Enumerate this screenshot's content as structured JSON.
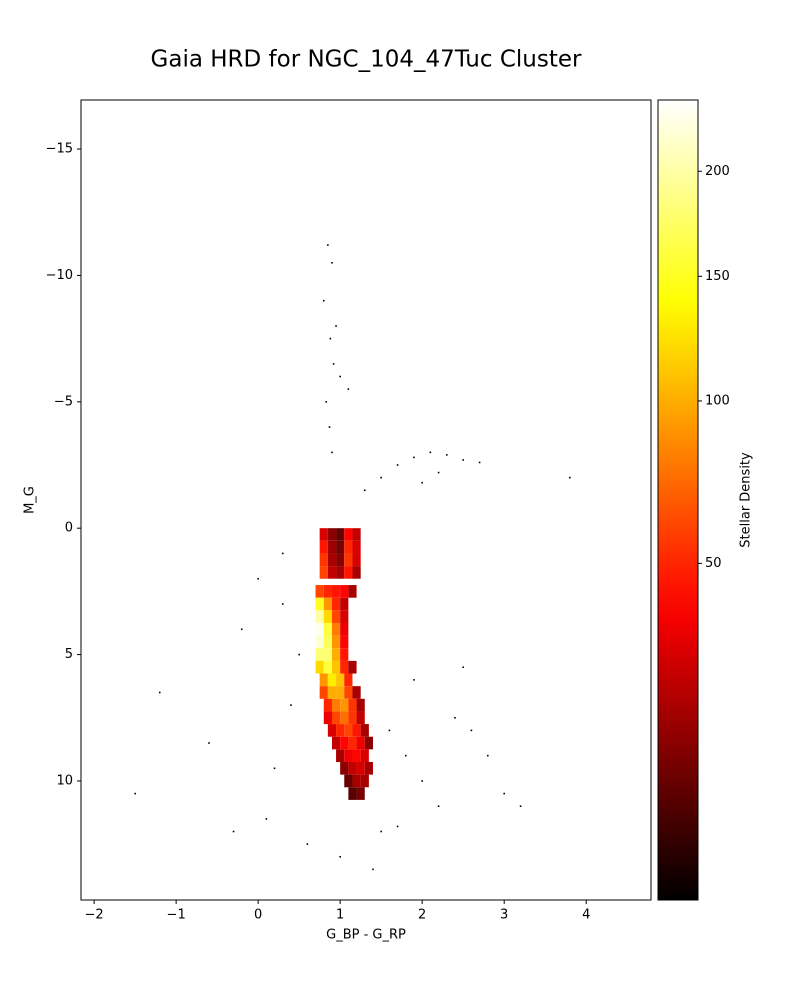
{
  "chart_data": {
    "type": "hist2d",
    "title": "Gaia HRD for NGC_104_47Tuc Cluster",
    "xlabel": "G_BP - G_RP",
    "ylabel": "M_G",
    "colorbar_label": "Stellar Density",
    "cmap": "hot",
    "color_gamma": 0.5,
    "clim": [
      1,
      238
    ],
    "cticks": [
      50,
      100,
      150,
      200
    ],
    "xlim": [
      -2.16,
      4.79
    ],
    "ylim": [
      -16.94,
      14.71
    ],
    "y_inverted": true,
    "xticks": [
      {
        "value": -2,
        "label": "−2"
      },
      {
        "value": -1,
        "label": "−1"
      },
      0,
      1,
      2,
      3,
      4
    ],
    "yticks": [
      {
        "value": -15,
        "label": "−15"
      },
      {
        "value": -10,
        "label": "−10"
      },
      {
        "value": -5,
        "label": "−5"
      },
      0,
      5,
      10
    ],
    "bin_size": [
      0.1,
      0.5
    ],
    "cells": {
      "x": [
        0.8,
        0.9,
        1.0,
        1.1,
        1.2,
        0.8,
        0.9,
        1.0,
        1.1,
        1.2,
        0.8,
        0.9,
        1.0,
        1.1,
        1.2,
        0.8,
        0.9,
        1.0,
        1.1,
        1.2,
        0.75,
        0.85,
        0.95,
        1.05,
        1.15,
        0.75,
        0.85,
        0.95,
        1.05,
        0.75,
        0.85,
        0.95,
        1.05,
        0.75,
        0.85,
        0.95,
        1.05,
        0.75,
        0.85,
        0.95,
        1.05,
        0.75,
        0.85,
        0.95,
        1.05,
        0.75,
        0.85,
        0.95,
        1.05,
        1.15,
        0.8,
        0.9,
        1.0,
        1.1,
        0.8,
        0.9,
        1.0,
        1.1,
        1.2,
        0.85,
        0.95,
        1.05,
        1.15,
        1.25,
        0.85,
        0.95,
        1.05,
        1.15,
        1.25,
        0.9,
        1.0,
        1.1,
        1.2,
        1.3,
        0.95,
        1.05,
        1.15,
        1.25,
        1.35,
        1.0,
        1.1,
        1.2,
        1.3,
        1.05,
        1.15,
        1.25,
        1.35,
        1.1,
        1.2,
        1.3,
        1.15,
        1.25
      ],
      "y": [
        0.25,
        0.25,
        0.25,
        0.25,
        0.25,
        0.75,
        0.75,
        0.75,
        0.75,
        0.75,
        1.25,
        1.25,
        1.25,
        1.25,
        1.25,
        1.75,
        1.75,
        1.75,
        1.75,
        1.75,
        2.5,
        2.5,
        2.5,
        2.5,
        2.5,
        3,
        3,
        3,
        3,
        3.5,
        3.5,
        3.5,
        3.5,
        4,
        4,
        4,
        4,
        4.5,
        4.5,
        4.5,
        4.5,
        5,
        5,
        5,
        5,
        5.5,
        5.5,
        5.5,
        5.5,
        5.5,
        6,
        6,
        6,
        6,
        6.5,
        6.5,
        6.5,
        6.5,
        6.5,
        7,
        7,
        7,
        7,
        7,
        7.5,
        7.5,
        7.5,
        7.5,
        7.5,
        8,
        8,
        8,
        8,
        8,
        8.5,
        8.5,
        8.5,
        8.5,
        8.5,
        9,
        9,
        9,
        9,
        9.5,
        9.5,
        9.5,
        9.5,
        10,
        10,
        10,
        10.5,
        10.5
      ],
      "density": [
        30,
        15,
        10,
        40,
        25,
        45,
        18,
        12,
        50,
        30,
        55,
        20,
        15,
        55,
        30,
        60,
        25,
        20,
        45,
        20,
        60,
        50,
        45,
        40,
        20,
        150,
        90,
        50,
        25,
        200,
        120,
        60,
        30,
        230,
        160,
        80,
        35,
        220,
        170,
        90,
        40,
        180,
        180,
        100,
        45,
        120,
        160,
        110,
        50,
        20,
        90,
        130,
        110,
        50,
        60,
        100,
        100,
        60,
        20,
        50,
        80,
        90,
        55,
        20,
        35,
        60,
        75,
        55,
        25,
        30,
        50,
        60,
        45,
        20,
        25,
        40,
        50,
        35,
        15,
        20,
        35,
        40,
        30,
        15,
        25,
        30,
        20,
        10,
        20,
        20,
        8,
        12
      ]
    },
    "field_stars": {
      "x": [
        0.85,
        0.9,
        0.8,
        0.95,
        0.88,
        0.92,
        1.0,
        1.1,
        0.83,
        0.87,
        1.3,
        1.5,
        1.7,
        1.9,
        2.1,
        2.3,
        2.5,
        2.7,
        2.2,
        2.0,
        0.3,
        0.5,
        0.4,
        1.6,
        1.8,
        2.0,
        2.2,
        0.2,
        0.1,
        -0.3,
        1.9,
        2.4,
        2.8,
        3.2,
        -0.6,
        -1.2,
        3.8,
        0.6,
        1.5,
        1.7,
        0.0,
        0.3,
        2.5,
        3.0,
        -0.2,
        1.0,
        0.9,
        1.4,
        2.6,
        -1.5
      ],
      "y": [
        -11.2,
        -10.5,
        -9.0,
        -8.0,
        -7.5,
        -6.5,
        -6.0,
        -5.5,
        -5.0,
        -4.0,
        -1.5,
        -2.0,
        -2.5,
        -2.8,
        -3.0,
        -2.9,
        -2.7,
        -2.6,
        -2.2,
        -1.8,
        3.0,
        5.0,
        7.0,
        8.0,
        9.0,
        10.0,
        11.0,
        9.5,
        11.5,
        12.0,
        6.0,
        7.5,
        9.0,
        11.0,
        8.5,
        6.5,
        -2.0,
        12.5,
        12.0,
        11.8,
        2.0,
        1.0,
        5.5,
        10.5,
        4.0,
        13.0,
        -3.0,
        13.5,
        8.0,
        10.5
      ]
    }
  }
}
